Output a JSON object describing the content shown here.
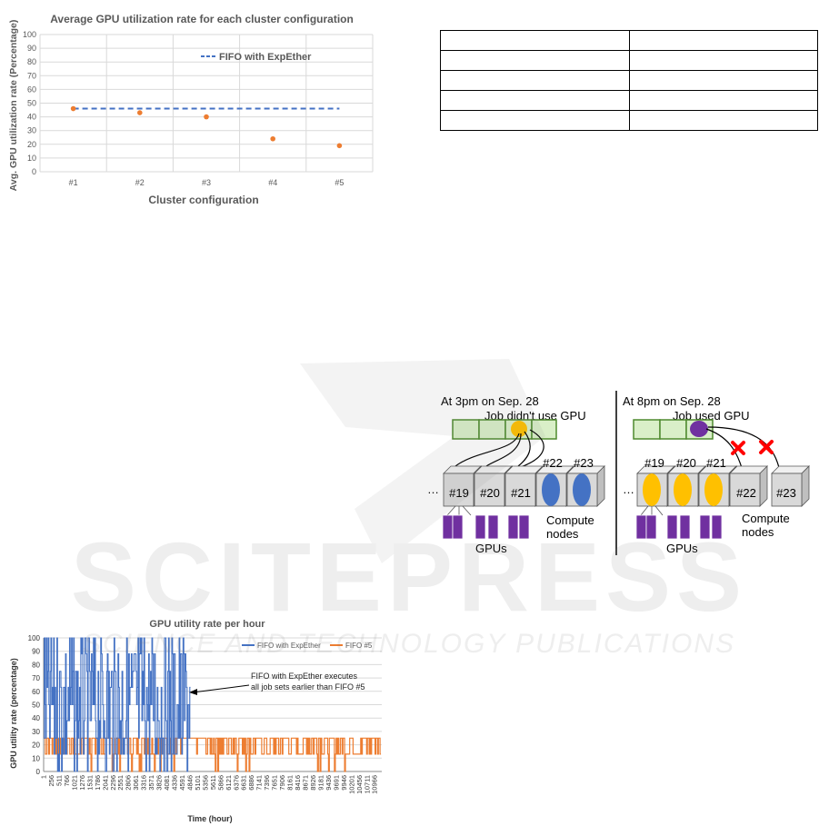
{
  "watermark": {
    "main": "SCITEPRESS",
    "sub": "SCIENCE AND TECHNOLOGY PUBLICATIONS"
  },
  "table": {
    "rows": [
      [
        "",
        ""
      ],
      [
        "",
        ""
      ],
      [
        "",
        ""
      ],
      [
        "",
        ""
      ],
      [
        "",
        ""
      ]
    ]
  },
  "chart_data": [
    {
      "type": "scatter",
      "title": "Average GPU utilization rate for each cluster configuration",
      "xlabel": "Cluster configuration",
      "ylabel": "Avg. GPU utilization rate (Percentage)",
      "categories": [
        "#1",
        "#2",
        "#3",
        "#4",
        "#5"
      ],
      "values": [
        46,
        43,
        40,
        24,
        19
      ],
      "ylim": [
        0,
        100
      ],
      "yticks": [
        0,
        10,
        20,
        30,
        40,
        50,
        60,
        70,
        80,
        90,
        100
      ],
      "reference_line": {
        "label": "FIFO with ExpEther",
        "value": 46
      },
      "grid": true,
      "colors": {
        "points": "#ed7d31",
        "reference": "#4472c4"
      }
    },
    {
      "type": "line",
      "title": "GPU utility rate per hour",
      "xlabel": "Time (hour)",
      "ylabel": "GPU utility rate (percentage)",
      "ylim": [
        0,
        100
      ],
      "yticks": [
        0,
        10,
        20,
        30,
        40,
        50,
        60,
        70,
        80,
        90,
        100
      ],
      "xticks": [
        "1",
        "256",
        "511",
        "766",
        "1021",
        "1276",
        "1531",
        "1786",
        "2041",
        "2296",
        "2551",
        "2806",
        "3061",
        "3316",
        "3571",
        "3826",
        "4081",
        "4336",
        "4591",
        "4846",
        "5101",
        "5356",
        "5611",
        "5866",
        "6121",
        "6376",
        "6631",
        "6886",
        "7141",
        "7396",
        "7651",
        "7906",
        "8161",
        "8416",
        "8671",
        "8926",
        "9181",
        "9436",
        "9691",
        "9946",
        "10201",
        "10456",
        "10711",
        "10966"
      ],
      "series": [
        {
          "name": "FIFO with ExpEther",
          "color": "#4472c4",
          "end_hour": 4860,
          "levels": [
            100,
            88,
            75,
            63,
            50,
            38,
            25,
            13,
            0
          ]
        },
        {
          "name": "FIFO #5",
          "color": "#ed7d31",
          "end_hour": 11150,
          "levels": [
            25,
            13,
            0
          ]
        }
      ],
      "annotation": {
        "line1": "FIFO with ExpEther executes",
        "line2": "all job sets earlier than FIFO #5"
      },
      "grid": true
    }
  ],
  "diagram": {
    "left": {
      "caption": "At 3pm on Sep. 28",
      "job_label": "Job didn't use GPU",
      "nodes": [
        "#19",
        "#20",
        "#21",
        "#22",
        "#23"
      ],
      "gpus_label": "GPUs",
      "compute_label_1": "Compute",
      "compute_label_2": "nodes",
      "ellipsis": "…"
    },
    "right": {
      "caption": "At 8pm on Sep. 28",
      "job_label": "Job used GPU",
      "nodes": [
        "#19",
        "#20",
        "#21",
        "#22",
        "#23"
      ],
      "gpus_label": "GPUs",
      "compute_label_1": "Compute",
      "compute_label_2": "nodes",
      "ellipsis": "…"
    },
    "colors": {
      "queue": "#d9efc8",
      "queue_border": "#4e8a2e",
      "yellow": "#ffc000",
      "blue": "#4472c4",
      "purple": "#7030a0",
      "red": "#ff0000"
    }
  }
}
